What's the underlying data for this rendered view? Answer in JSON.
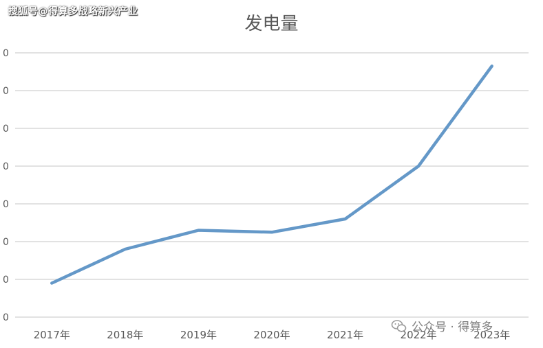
{
  "watermark_top": "搜狐号@得算多战略新兴产业",
  "watermark_bottom": "公众号 · 得算多",
  "chart_data": {
    "type": "line",
    "title": "发电量",
    "categories": [
      "2017年",
      "2018年",
      "2019年",
      "2020年",
      "2021年",
      "2022年",
      "2023年"
    ],
    "series": [
      {
        "values": [
          0.9,
          1.8,
          2.3,
          2.25,
          2.6,
          4.0,
          6.65
        ]
      }
    ],
    "ylim": [
      0,
      7
    ],
    "y_tick_labels": [
      "0",
      "0",
      "0",
      "0",
      "0",
      "0",
      "0",
      "0"
    ],
    "grid": true,
    "line_color": "#6498C8"
  }
}
